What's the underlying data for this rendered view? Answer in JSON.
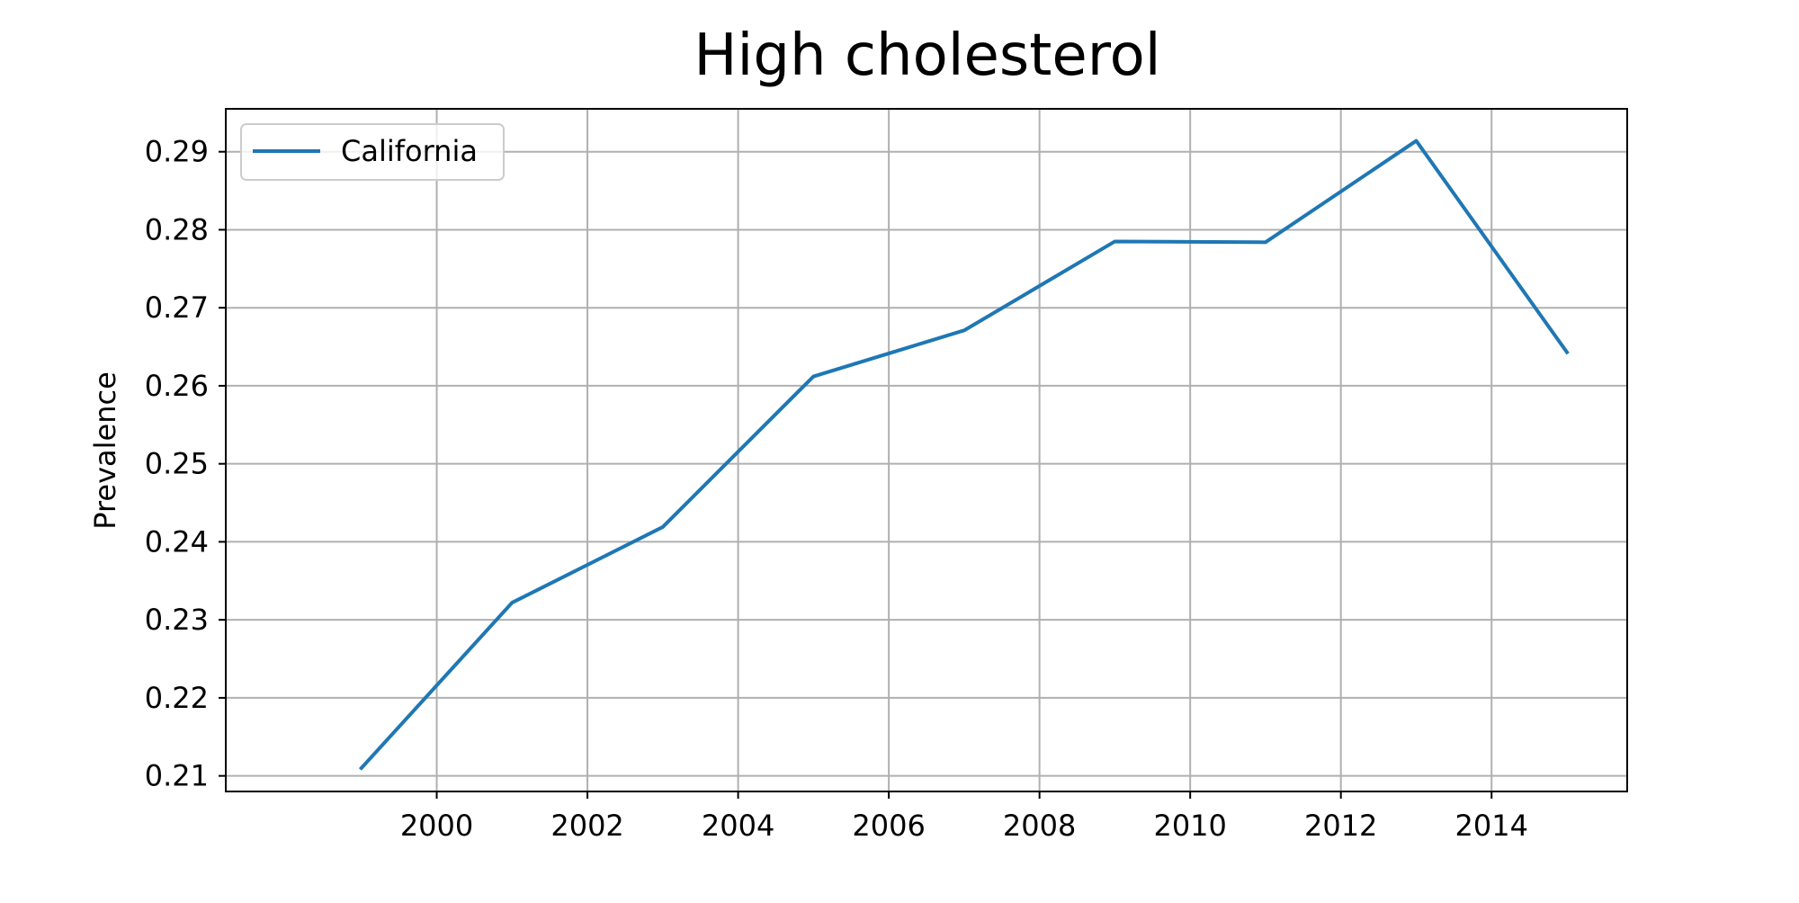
{
  "chart_data": {
    "type": "line",
    "title": "High cholesterol",
    "xlabel": "",
    "ylabel": "Prevalence",
    "x": [
      1999,
      2001,
      2003,
      2005,
      2007,
      2009,
      2011,
      2013,
      2015
    ],
    "series": [
      {
        "name": "California",
        "color": "#1f77b4",
        "values": [
          0.211,
          0.2322,
          0.2419,
          0.2612,
          0.2671,
          0.2785,
          0.2784,
          0.2914,
          0.2643
        ]
      }
    ],
    "xlim": [
      1997.2,
      2015.8
    ],
    "ylim": [
      0.208,
      0.2955
    ],
    "xticks": [
      2000,
      2002,
      2004,
      2006,
      2008,
      2010,
      2012,
      2014
    ],
    "yticks": [
      0.21,
      0.22,
      0.23,
      0.24,
      0.25,
      0.26,
      0.27,
      0.28,
      0.29
    ],
    "grid": true,
    "legend_position": "top-left"
  }
}
